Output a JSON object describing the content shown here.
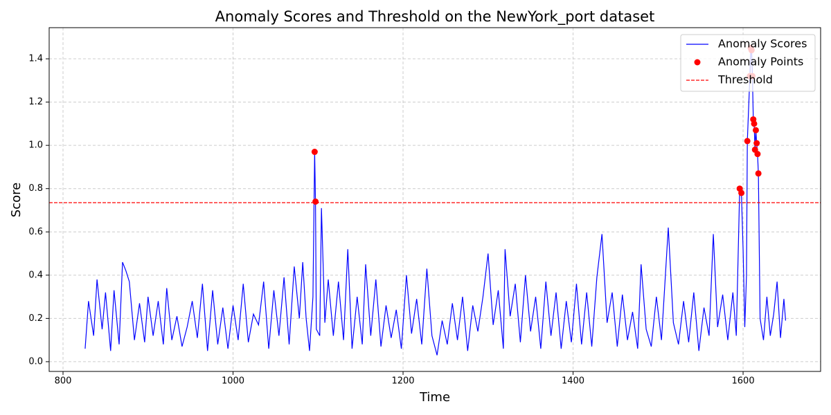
{
  "chart_data": {
    "type": "line",
    "title": "Anomaly Scores and Threshold on the NewYork_port dataset",
    "x_label": "Time",
    "y_label": "Score",
    "xlim": [
      783.7,
      1691.2
    ],
    "ylim": [
      -0.045,
      1.544
    ],
    "xticks": [
      800,
      1000,
      1200,
      1400,
      1600
    ],
    "yticks": [
      {
        "value": 0,
        "label": "0.0"
      },
      0.2,
      0.4,
      0.6,
      0.8,
      {
        "value": 1,
        "label": "1.0"
      },
      1.2,
      1.4
    ],
    "grid": true,
    "legend": "upper-right",
    "series": [
      {
        "name": "Anomaly Scores",
        "type": "line",
        "color": "#0000ff",
        "x": [
          826,
          830,
          836,
          840,
          846,
          850,
          856,
          860,
          866,
          870,
          874,
          878,
          884,
          890,
          896,
          900,
          906,
          912,
          918,
          922,
          928,
          934,
          940,
          946,
          952,
          958,
          964,
          970,
          976,
          982,
          988,
          994,
          1000,
          1006,
          1012,
          1018,
          1024,
          1030,
          1036,
          1042,
          1048,
          1054,
          1060,
          1066,
          1072,
          1078,
          1082,
          1086,
          1090,
          1094,
          1096,
          1097,
          1098,
          1102,
          1104,
          1108,
          1112,
          1118,
          1124,
          1130,
          1135,
          1140,
          1146,
          1152,
          1156,
          1162,
          1168,
          1174,
          1180,
          1186,
          1192,
          1198,
          1204,
          1210,
          1216,
          1222,
          1228,
          1234,
          1240,
          1246,
          1252,
          1258,
          1264,
          1270,
          1276,
          1282,
          1288,
          1294,
          1300,
          1306,
          1312,
          1318,
          1320,
          1326,
          1332,
          1338,
          1344,
          1350,
          1356,
          1362,
          1368,
          1374,
          1380,
          1386,
          1392,
          1398,
          1404,
          1410,
          1416,
          1422,
          1428,
          1434,
          1440,
          1446,
          1452,
          1458,
          1464,
          1470,
          1476,
          1480,
          1486,
          1492,
          1498,
          1504,
          1512,
          1518,
          1524,
          1530,
          1536,
          1542,
          1548,
          1554,
          1560,
          1565,
          1570,
          1576,
          1582,
          1588,
          1592,
          1596,
          1598,
          1600,
          1602,
          1604,
          1605,
          1608,
          1609,
          1610,
          1611,
          1612,
          1613,
          1614,
          1615,
          1616,
          1617,
          1618,
          1620,
          1624,
          1628,
          1632,
          1636,
          1640,
          1644,
          1648,
          1650
        ],
        "values": [
          0.06,
          0.28,
          0.12,
          0.38,
          0.15,
          0.32,
          0.05,
          0.33,
          0.08,
          0.46,
          0.42,
          0.37,
          0.1,
          0.27,
          0.09,
          0.3,
          0.12,
          0.28,
          0.08,
          0.34,
          0.1,
          0.21,
          0.07,
          0.16,
          0.28,
          0.11,
          0.36,
          0.05,
          0.33,
          0.08,
          0.25,
          0.06,
          0.26,
          0.1,
          0.36,
          0.09,
          0.22,
          0.17,
          0.37,
          0.06,
          0.33,
          0.12,
          0.39,
          0.08,
          0.44,
          0.2,
          0.46,
          0.2,
          0.05,
          0.3,
          0.97,
          0.74,
          0.15,
          0.12,
          0.71,
          0.18,
          0.38,
          0.12,
          0.37,
          0.1,
          0.52,
          0.06,
          0.3,
          0.08,
          0.45,
          0.12,
          0.38,
          0.07,
          0.26,
          0.11,
          0.24,
          0.06,
          0.4,
          0.13,
          0.29,
          0.08,
          0.43,
          0.12,
          0.03,
          0.19,
          0.08,
          0.27,
          0.1,
          0.3,
          0.05,
          0.26,
          0.14,
          0.3,
          0.5,
          0.17,
          0.33,
          0.06,
          0.52,
          0.21,
          0.36,
          0.09,
          0.4,
          0.14,
          0.3,
          0.06,
          0.37,
          0.12,
          0.32,
          0.06,
          0.28,
          0.09,
          0.36,
          0.08,
          0.32,
          0.07,
          0.39,
          0.59,
          0.18,
          0.32,
          0.07,
          0.31,
          0.1,
          0.23,
          0.06,
          0.45,
          0.15,
          0.07,
          0.3,
          0.1,
          0.62,
          0.18,
          0.08,
          0.28,
          0.09,
          0.32,
          0.05,
          0.25,
          0.12,
          0.59,
          0.16,
          0.31,
          0.1,
          0.32,
          0.12,
          0.8,
          0.78,
          0.52,
          0.16,
          0.4,
          1.02,
          1.32,
          1.45,
          1.44,
          1.32,
          1.12,
          1.1,
          0.98,
          1.07,
          1.01,
          0.96,
          0.87,
          0.2,
          0.1,
          0.3,
          0.12,
          0.22,
          0.37,
          0.11,
          0.29,
          0.19
        ]
      },
      {
        "name": "Anomaly Points",
        "type": "scatter",
        "color": "#ff0000",
        "x": [
          1096,
          1097,
          1596,
          1598,
          1605,
          1608,
          1609,
          1610,
          1611,
          1612,
          1613,
          1614,
          1615,
          1616,
          1617,
          1618
        ],
        "values": [
          0.97,
          0.74,
          0.8,
          0.78,
          1.02,
          1.32,
          1.45,
          1.44,
          1.32,
          1.12,
          1.1,
          0.98,
          1.07,
          1.01,
          0.96,
          0.87
        ]
      },
      {
        "name": "Threshold",
        "type": "hline",
        "color": "#ff0000",
        "value": 0.735
      }
    ]
  }
}
